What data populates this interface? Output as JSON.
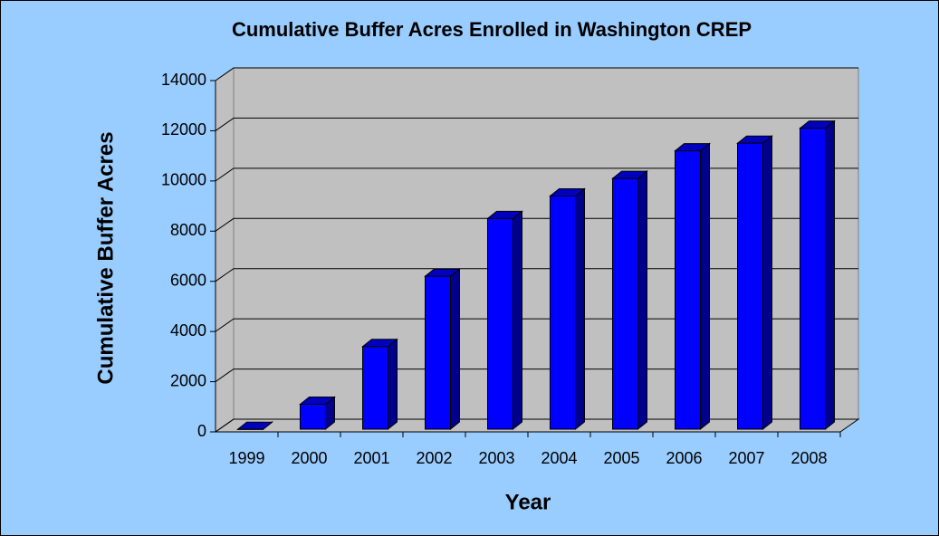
{
  "chart_data": {
    "type": "bar3d",
    "title": "Cumulative Buffer Acres Enrolled in Washington CREP",
    "x_label": "Year",
    "y_label": "Cumulative Buffer Acres",
    "categories": [
      "1999",
      "2000",
      "2001",
      "2002",
      "2003",
      "2004",
      "2005",
      "2006",
      "2007",
      "2008"
    ],
    "values": [
      100,
      1100,
      3400,
      6200,
      8500,
      9400,
      10100,
      11200,
      11500,
      12100
    ],
    "color": "#0000ff",
    "ylim": [
      0,
      14000
    ],
    "yticks": [
      0,
      2000,
      4000,
      6000,
      8000,
      10000,
      12000,
      14000
    ],
    "grid": true
  }
}
